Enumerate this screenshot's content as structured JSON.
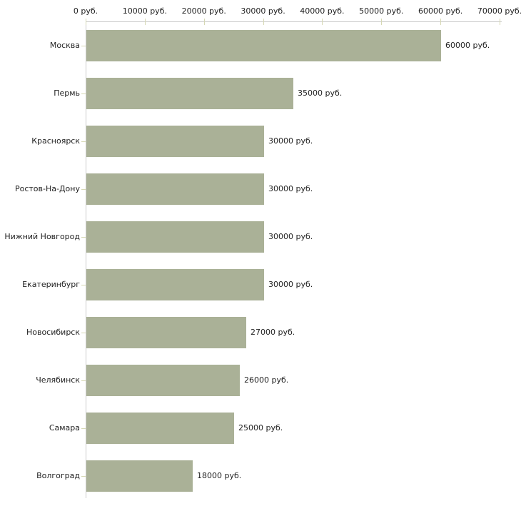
{
  "chart_data": {
    "type": "bar",
    "orientation": "horizontal",
    "title": "",
    "currency_suffix": " руб.",
    "categories": [
      "Москва",
      "Пермь",
      "Красноярск",
      "Ростов-На-Дону",
      "Нижний Новгород",
      "Екатеринбург",
      "Новосибирск",
      "Челябинск",
      "Самара",
      "Волгоград"
    ],
    "values": [
      60000,
      35000,
      30000,
      30000,
      30000,
      30000,
      27000,
      26000,
      25000,
      18000
    ],
    "value_labels": [
      "60000 руб.",
      "35000 руб.",
      "30000 руб.",
      "30000 руб.",
      "30000 руб.",
      "30000 руб.",
      "27000 руб.",
      "26000 руб.",
      "25000 руб.",
      "18000 руб."
    ],
    "x_axis": {
      "position": "top",
      "min": 0,
      "max": 70000,
      "tick_interval": 10000,
      "tick_labels": [
        "0 руб.",
        "10000 руб.",
        "20000 руб.",
        "30000 руб.",
        "40000 руб.",
        "50000 руб.",
        "60000 руб.",
        "70000 руб."
      ]
    },
    "grid": false,
    "legend": false,
    "colors": {
      "bar": "#aab197",
      "axis_line": "#cbcbcb",
      "tick": "#d6d8b4",
      "text": "#1f1f1f",
      "background": "#ffffff"
    }
  }
}
